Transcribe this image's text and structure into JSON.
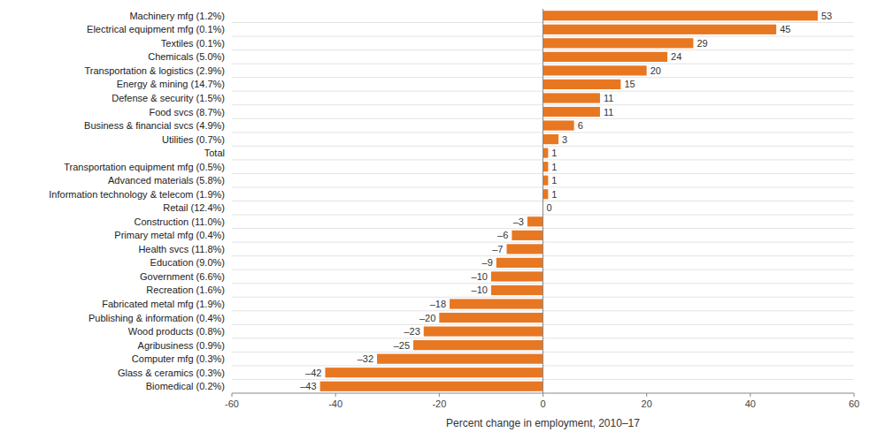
{
  "chart_data": {
    "type": "bar",
    "orientation": "horizontal",
    "xlabel": "Percent change in employment, 2010–17",
    "categories": [
      "Machinery mfg (1.2%)",
      "Electrical equipment mfg (0.1%)",
      "Textiles (0.1%)",
      "Chemicals (5.0%)",
      "Transportation & logistics (2.9%)",
      "Energy & mining (14.7%)",
      "Defense & security (1.5%)",
      "Food svcs (8.7%)",
      "Business & financial svcs (4.9%)",
      "Utilities (0.7%)",
      "Total",
      "Transportation equipment mfg (0.5%)",
      "Advanced materials (5.8%)",
      "Information technology & telecom (1.9%)",
      "Retail (12.4%)",
      "Construction (11.0%)",
      "Primary metal mfg (0.4%)",
      "Health svcs (11.8%)",
      "Education (9.0%)",
      "Government (6.6%)",
      "Recreation (1.6%)",
      "Fabricated metal mfg (1.9%)",
      "Publishing & information (0.4%)",
      "Wood products (0.8%)",
      "Agribusiness (0.9%)",
      "Computer mfg (0.3%)",
      "Glass & ceramics (0.3%)",
      "Biomedical (0.2%)"
    ],
    "values": [
      53,
      45,
      29,
      24,
      20,
      15,
      11,
      11,
      6,
      3,
      1,
      1,
      1,
      1,
      0,
      -3,
      -6,
      -7,
      -9,
      -10,
      -10,
      -18,
      -20,
      -23,
      -25,
      -32,
      -42,
      -43
    ],
    "value_labels": [
      "53",
      "45",
      "29",
      "24",
      "20",
      "15",
      "11",
      "11",
      "6",
      "3",
      "1",
      "1",
      "1",
      "1",
      "0",
      "–3",
      "–6",
      "–7",
      "–9",
      "–10",
      "–10",
      "–18",
      "–20",
      "–23",
      "–25",
      "–32",
      "–42",
      "–43"
    ],
    "data_labels": true,
    "color": "#E87722",
    "xlim": [
      -60,
      60
    ],
    "xticks": [
      -60,
      -40,
      -20,
      0,
      20,
      40,
      60
    ],
    "grid": false
  }
}
